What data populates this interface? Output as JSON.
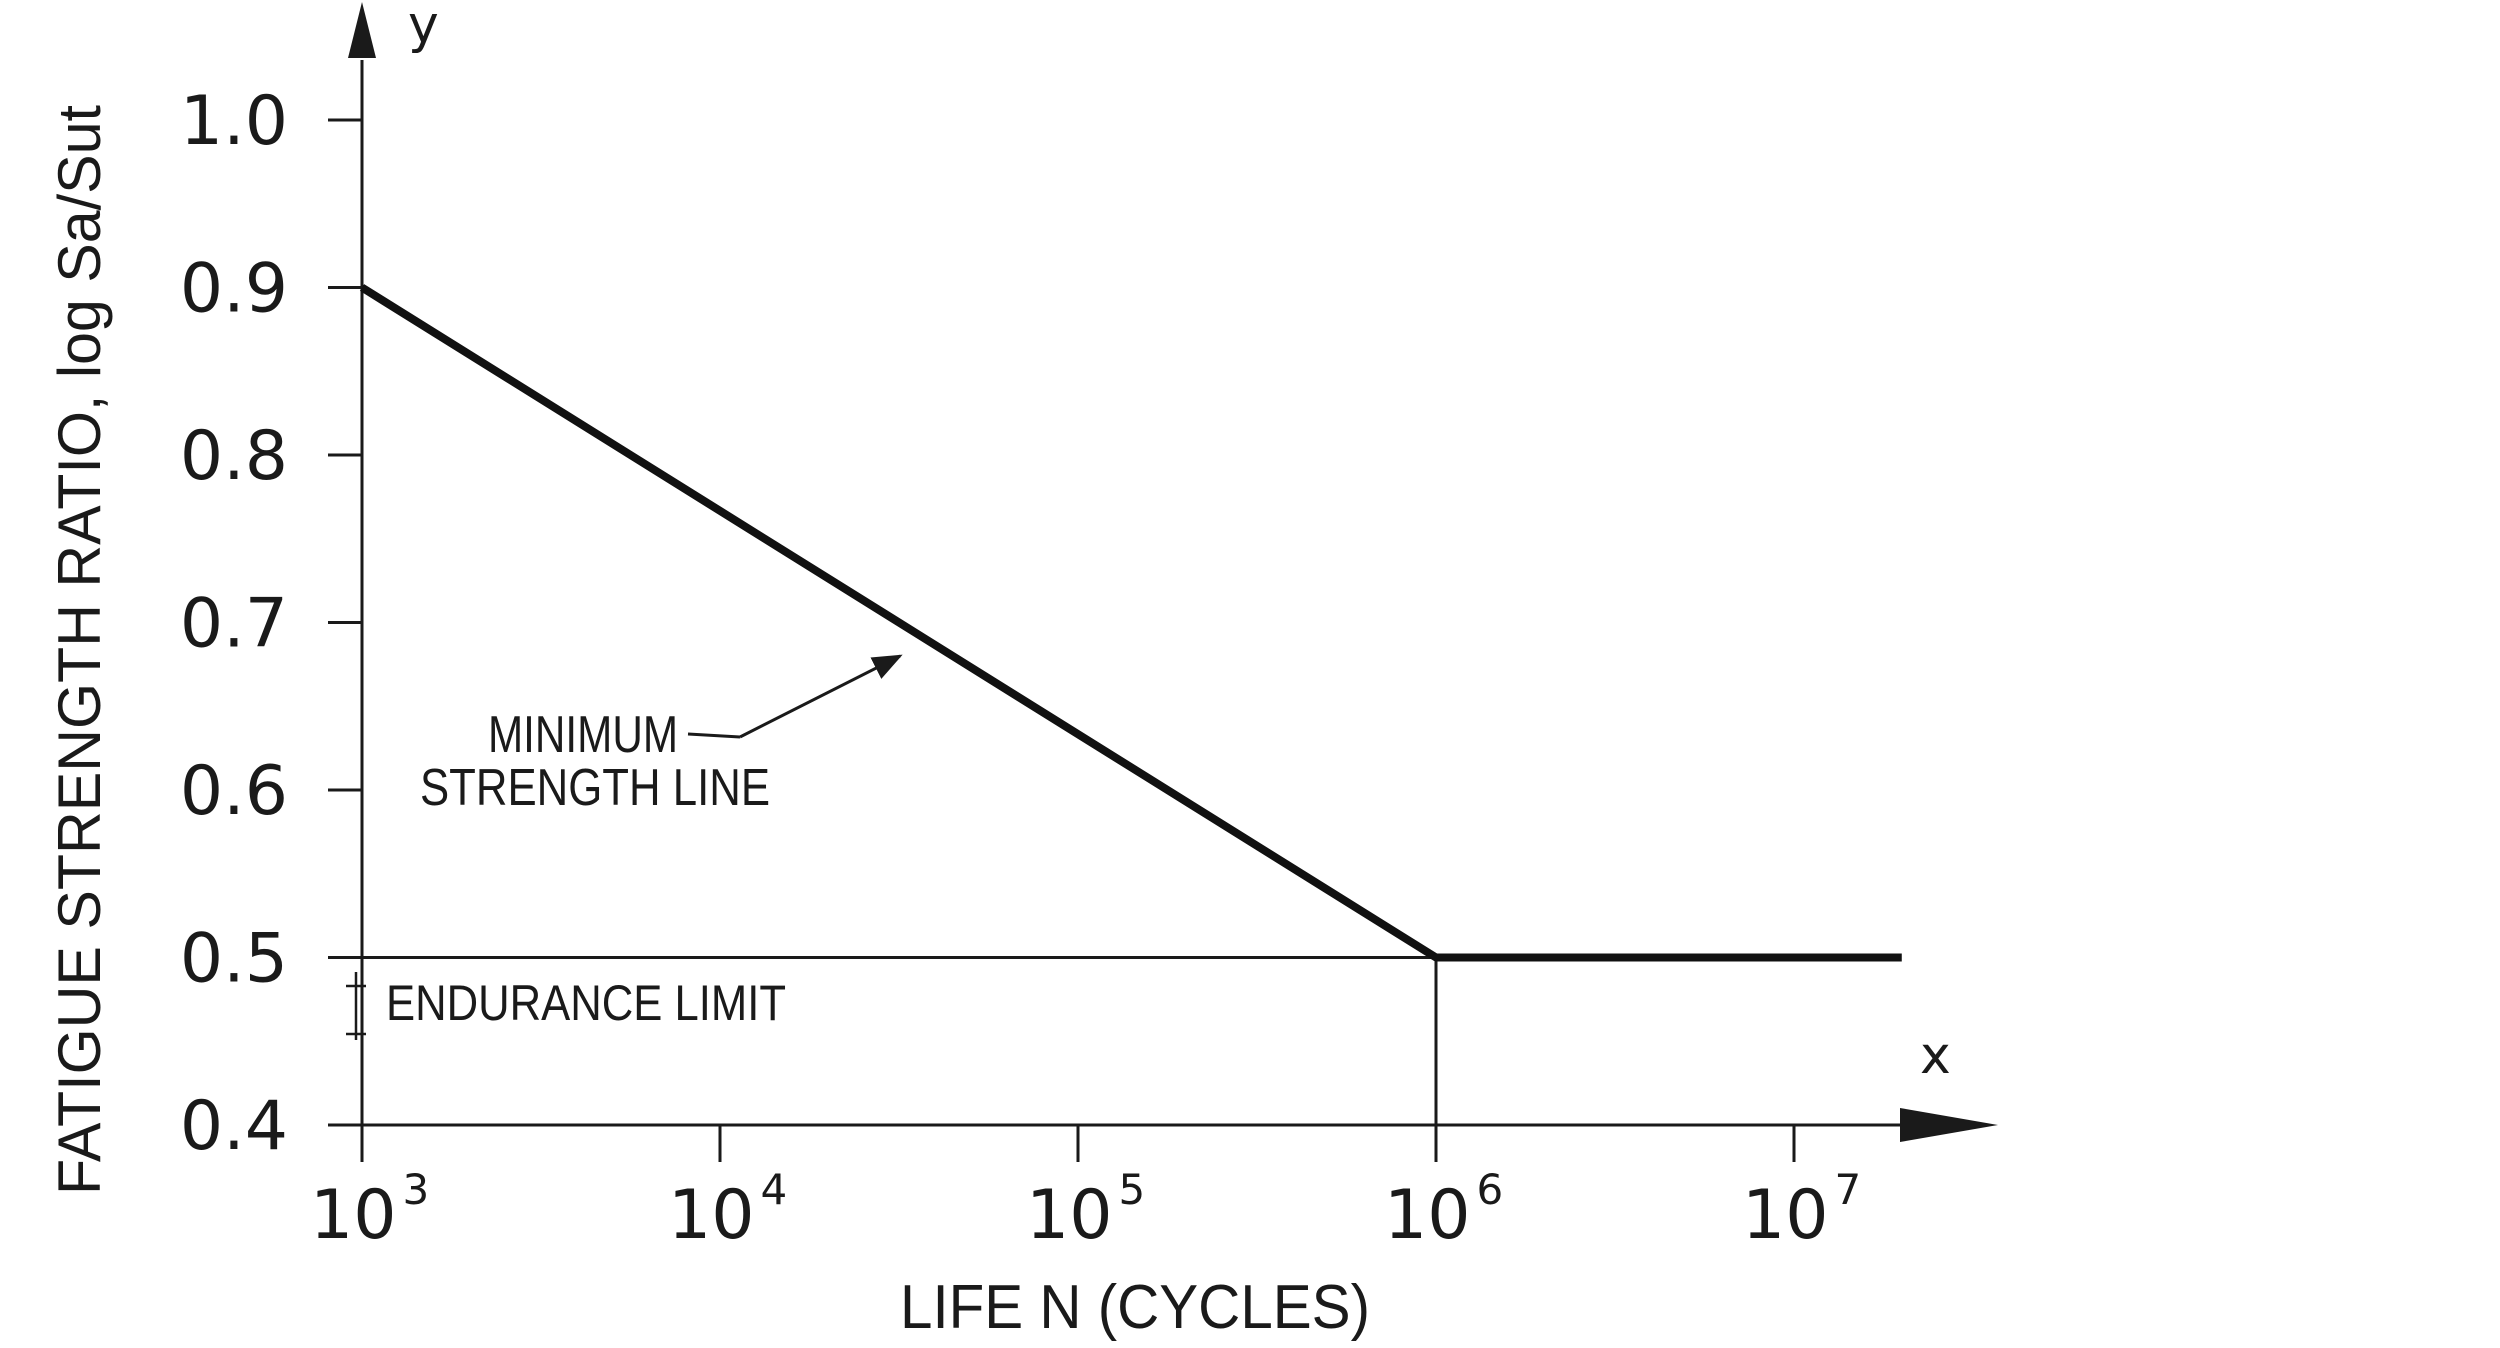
{
  "chart_data": {
    "type": "line",
    "x_scale": "log",
    "y_axis_letter": "y",
    "x_axis_letter": "x",
    "xlabel": "LIFE N (CYCLES)",
    "ylabel": "FATIGUE STRENGTH RATIO, log Sa/Sut",
    "x_ticks": [
      {
        "base": "10",
        "exp": "3",
        "value": 1000
      },
      {
        "base": "10",
        "exp": "4",
        "value": 10000
      },
      {
        "base": "10",
        "exp": "5",
        "value": 100000
      },
      {
        "base": "10",
        "exp": "6",
        "value": 1000000
      },
      {
        "base": "10",
        "exp": "7",
        "value": 10000000
      }
    ],
    "y_ticks": [
      "1.0",
      "0.9",
      "0.8",
      "0.7",
      "0.6",
      "0.5",
      "0.4"
    ],
    "y_tick_values": [
      1.0,
      0.9,
      0.8,
      0.7,
      0.6,
      0.5,
      0.4
    ],
    "ylim": [
      0.4,
      1.0
    ],
    "xlim": [
      1000,
      10000000
    ],
    "series": [
      {
        "x": [
          1000,
          1000000,
          20000000
        ],
        "y": [
          0.9,
          0.5,
          0.5
        ]
      }
    ],
    "endurance_limit": {
      "value": 0.5,
      "label": "ENDURANCE LIMIT"
    },
    "knee": {
      "x": 1000000,
      "y": 0.5
    },
    "annotations": [
      {
        "line1": "MINIMUM",
        "line2": "STRENGTH LINE"
      }
    ]
  }
}
